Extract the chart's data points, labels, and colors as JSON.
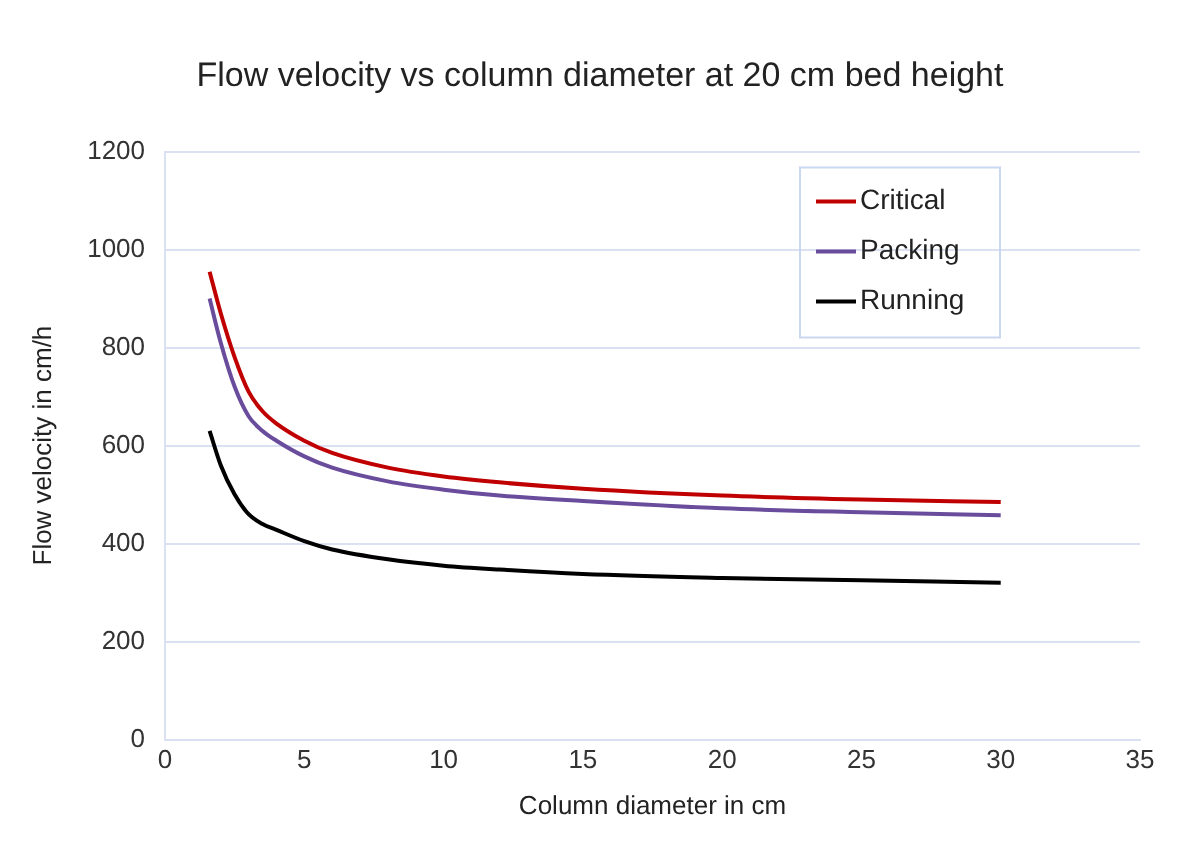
{
  "chart_data": {
    "type": "line",
    "title": "Flow velocity vs column diameter at 20 cm bed height",
    "xlabel": "Column diameter in cm",
    "ylabel": "Flow velocity in cm/h",
    "x": [
      1.6,
      2,
      2.5,
      3,
      3.5,
      4,
      5,
      6,
      8,
      10,
      12,
      15,
      20,
      25,
      30
    ],
    "series": [
      {
        "name": "Critical",
        "color": "#c00000",
        "values": [
          955,
          870,
          780,
          710,
          670,
          645,
          610,
          585,
          555,
          537,
          525,
          512,
          498,
          490,
          485
        ]
      },
      {
        "name": "Packing",
        "color": "#6a4c9c",
        "values": [
          900,
          810,
          720,
          660,
          630,
          610,
          578,
          555,
          527,
          510,
          498,
          487,
          472,
          464,
          458
        ]
      },
      {
        "name": "Running",
        "color": "#000000",
        "values": [
          630,
          560,
          500,
          460,
          440,
          428,
          405,
          388,
          368,
          355,
          347,
          338,
          330,
          325,
          320
        ]
      }
    ],
    "xlim": [
      0,
      35
    ],
    "xticks": [
      0,
      5,
      10,
      15,
      20,
      25,
      30,
      35
    ],
    "ylim": [
      0,
      1200
    ],
    "yticks": [
      0,
      200,
      400,
      600,
      800,
      1000,
      1200
    ],
    "grid": "y",
    "legend": "top right",
    "marker": "none",
    "line_style": "solid"
  }
}
